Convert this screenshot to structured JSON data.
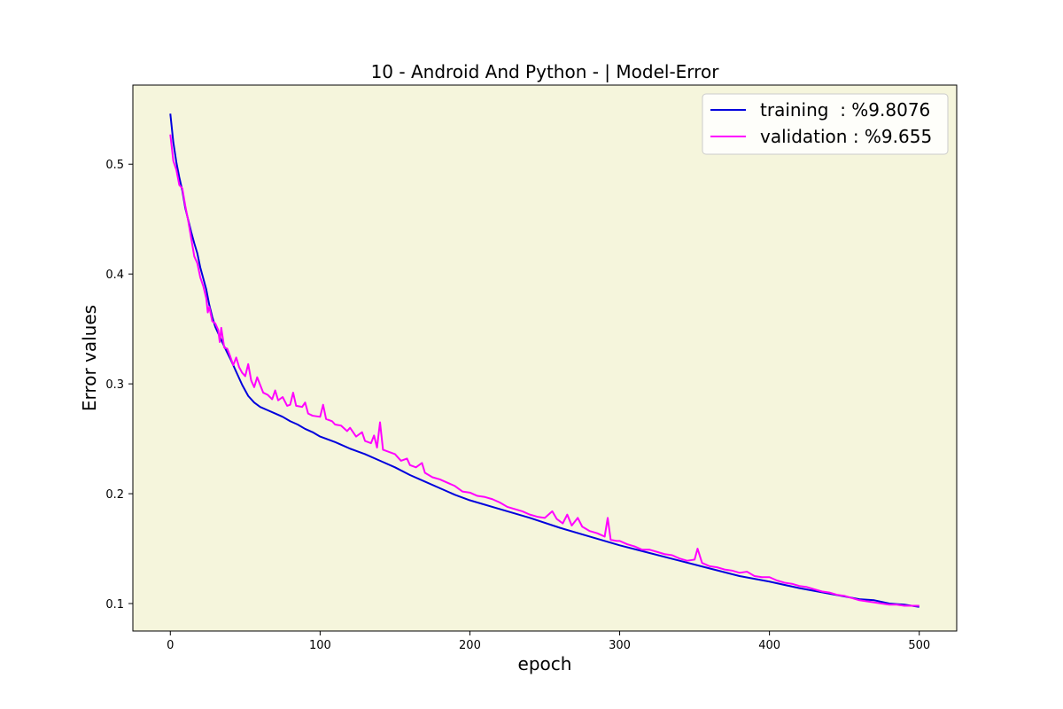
{
  "chart_data": {
    "type": "line",
    "title": "10 - Android And Python - | Model-Error",
    "xlabel": "epoch",
    "ylabel": "Error values",
    "xlim": [
      -25,
      525
    ],
    "ylim": [
      0.075,
      0.572
    ],
    "xticks": [
      0,
      100,
      200,
      300,
      400,
      500
    ],
    "yticks": [
      0.1,
      0.2,
      0.3,
      0.4,
      0.5
    ],
    "grid": false,
    "legend_position": "top-right",
    "plot_background": "#f5f5dc",
    "series": [
      {
        "name": "training  : %9.8076",
        "color": "#0000dd",
        "points": [
          [
            0,
            0.546
          ],
          [
            2,
            0.52
          ],
          [
            4,
            0.502
          ],
          [
            6,
            0.488
          ],
          [
            8,
            0.476
          ],
          [
            10,
            0.46
          ],
          [
            12,
            0.449
          ],
          [
            14,
            0.438
          ],
          [
            16,
            0.428
          ],
          [
            18,
            0.419
          ],
          [
            20,
            0.406
          ],
          [
            22,
            0.396
          ],
          [
            24,
            0.386
          ],
          [
            26,
            0.372
          ],
          [
            28,
            0.361
          ],
          [
            30,
            0.352
          ],
          [
            33,
            0.343
          ],
          [
            36,
            0.334
          ],
          [
            40,
            0.323
          ],
          [
            44,
            0.311
          ],
          [
            48,
            0.299
          ],
          [
            52,
            0.289
          ],
          [
            56,
            0.283
          ],
          [
            60,
            0.279
          ],
          [
            65,
            0.276
          ],
          [
            70,
            0.273
          ],
          [
            75,
            0.27
          ],
          [
            80,
            0.266
          ],
          [
            85,
            0.263
          ],
          [
            90,
            0.259
          ],
          [
            95,
            0.256
          ],
          [
            100,
            0.252
          ],
          [
            110,
            0.247
          ],
          [
            120,
            0.241
          ],
          [
            130,
            0.236
          ],
          [
            140,
            0.23
          ],
          [
            150,
            0.224
          ],
          [
            160,
            0.217
          ],
          [
            170,
            0.211
          ],
          [
            180,
            0.205
          ],
          [
            190,
            0.199
          ],
          [
            200,
            0.194
          ],
          [
            220,
            0.186
          ],
          [
            240,
            0.178
          ],
          [
            260,
            0.169
          ],
          [
            280,
            0.161
          ],
          [
            300,
            0.153
          ],
          [
            320,
            0.146
          ],
          [
            340,
            0.139
          ],
          [
            360,
            0.132
          ],
          [
            380,
            0.125
          ],
          [
            400,
            0.12
          ],
          [
            420,
            0.114
          ],
          [
            440,
            0.109
          ],
          [
            460,
            0.104
          ],
          [
            470,
            0.103
          ],
          [
            480,
            0.1
          ],
          [
            490,
            0.099
          ],
          [
            500,
            0.097
          ]
        ]
      },
      {
        "name": "validation : %9.655",
        "color": "#ff00ff",
        "points": [
          [
            0,
            0.527
          ],
          [
            2,
            0.503
          ],
          [
            4,
            0.495
          ],
          [
            6,
            0.481
          ],
          [
            8,
            0.478
          ],
          [
            10,
            0.462
          ],
          [
            12,
            0.448
          ],
          [
            14,
            0.432
          ],
          [
            16,
            0.416
          ],
          [
            18,
            0.41
          ],
          [
            20,
            0.397
          ],
          [
            22,
            0.389
          ],
          [
            24,
            0.378
          ],
          [
            25,
            0.365
          ],
          [
            26,
            0.37
          ],
          [
            28,
            0.357
          ],
          [
            30,
            0.355
          ],
          [
            32,
            0.349
          ],
          [
            33,
            0.338
          ],
          [
            34,
            0.351
          ],
          [
            36,
            0.333
          ],
          [
            38,
            0.332
          ],
          [
            40,
            0.325
          ],
          [
            42,
            0.317
          ],
          [
            44,
            0.324
          ],
          [
            46,
            0.315
          ],
          [
            48,
            0.31
          ],
          [
            50,
            0.307
          ],
          [
            52,
            0.318
          ],
          [
            54,
            0.303
          ],
          [
            56,
            0.297
          ],
          [
            58,
            0.306
          ],
          [
            60,
            0.299
          ],
          [
            62,
            0.292
          ],
          [
            65,
            0.29
          ],
          [
            68,
            0.286
          ],
          [
            70,
            0.294
          ],
          [
            72,
            0.285
          ],
          [
            75,
            0.288
          ],
          [
            78,
            0.28
          ],
          [
            80,
            0.281
          ],
          [
            82,
            0.292
          ],
          [
            84,
            0.28
          ],
          [
            88,
            0.279
          ],
          [
            90,
            0.283
          ],
          [
            92,
            0.273
          ],
          [
            95,
            0.271
          ],
          [
            100,
            0.27
          ],
          [
            102,
            0.281
          ],
          [
            104,
            0.268
          ],
          [
            108,
            0.266
          ],
          [
            110,
            0.263
          ],
          [
            114,
            0.262
          ],
          [
            118,
            0.257
          ],
          [
            120,
            0.26
          ],
          [
            124,
            0.252
          ],
          [
            128,
            0.256
          ],
          [
            130,
            0.248
          ],
          [
            134,
            0.246
          ],
          [
            136,
            0.253
          ],
          [
            138,
            0.242
          ],
          [
            140,
            0.265
          ],
          [
            142,
            0.24
          ],
          [
            146,
            0.238
          ],
          [
            150,
            0.236
          ],
          [
            154,
            0.23
          ],
          [
            158,
            0.232
          ],
          [
            160,
            0.226
          ],
          [
            164,
            0.224
          ],
          [
            168,
            0.228
          ],
          [
            170,
            0.219
          ],
          [
            175,
            0.215
          ],
          [
            180,
            0.213
          ],
          [
            185,
            0.21
          ],
          [
            190,
            0.207
          ],
          [
            195,
            0.202
          ],
          [
            200,
            0.201
          ],
          [
            205,
            0.198
          ],
          [
            210,
            0.197
          ],
          [
            215,
            0.195
          ],
          [
            220,
            0.192
          ],
          [
            225,
            0.188
          ],
          [
            230,
            0.186
          ],
          [
            235,
            0.184
          ],
          [
            240,
            0.181
          ],
          [
            245,
            0.179
          ],
          [
            250,
            0.178
          ],
          [
            255,
            0.184
          ],
          [
            258,
            0.177
          ],
          [
            262,
            0.173
          ],
          [
            265,
            0.181
          ],
          [
            268,
            0.171
          ],
          [
            272,
            0.178
          ],
          [
            275,
            0.17
          ],
          [
            280,
            0.166
          ],
          [
            285,
            0.164
          ],
          [
            290,
            0.161
          ],
          [
            292,
            0.178
          ],
          [
            294,
            0.158
          ],
          [
            298,
            0.157
          ],
          [
            300,
            0.157
          ],
          [
            305,
            0.154
          ],
          [
            310,
            0.152
          ],
          [
            315,
            0.149
          ],
          [
            320,
            0.149
          ],
          [
            325,
            0.147
          ],
          [
            330,
            0.145
          ],
          [
            335,
            0.144
          ],
          [
            340,
            0.141
          ],
          [
            345,
            0.139
          ],
          [
            350,
            0.14
          ],
          [
            352,
            0.15
          ],
          [
            355,
            0.137
          ],
          [
            360,
            0.134
          ],
          [
            365,
            0.133
          ],
          [
            370,
            0.131
          ],
          [
            375,
            0.13
          ],
          [
            380,
            0.128
          ],
          [
            385,
            0.129
          ],
          [
            390,
            0.125
          ],
          [
            395,
            0.124
          ],
          [
            400,
            0.124
          ],
          [
            405,
            0.121
          ],
          [
            410,
            0.119
          ],
          [
            415,
            0.118
          ],
          [
            420,
            0.116
          ],
          [
            425,
            0.115
          ],
          [
            430,
            0.113
          ],
          [
            435,
            0.111
          ],
          [
            440,
            0.11
          ],
          [
            445,
            0.108
          ],
          [
            450,
            0.107
          ],
          [
            455,
            0.105
          ],
          [
            460,
            0.103
          ],
          [
            465,
            0.102
          ],
          [
            470,
            0.101
          ],
          [
            475,
            0.1
          ],
          [
            480,
            0.099
          ],
          [
            485,
            0.099
          ],
          [
            490,
            0.098
          ],
          [
            495,
            0.098
          ],
          [
            500,
            0.098
          ]
        ]
      }
    ]
  }
}
